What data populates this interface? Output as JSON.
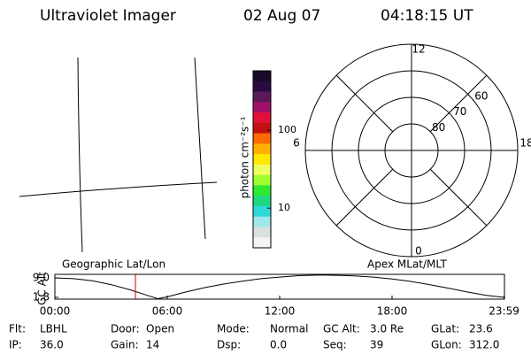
{
  "header": {
    "title": "Ultraviolet Imager",
    "date": "02 Aug 07",
    "time": "04:18:15 UT"
  },
  "geo_panel": {
    "label": "Geographic Lat/Lon"
  },
  "colorbar": {
    "label": "photon cm⁻²s⁻¹",
    "log": true,
    "clim": [
      3.1,
      577
    ],
    "ticks": [
      10,
      100
    ],
    "colors": [
      "#1a0a2a",
      "#2a0a40",
      "#5a1a5a",
      "#a0106a",
      "#e0103a",
      "#c01010",
      "#ff6a00",
      "#ffb000",
      "#ffe800",
      "#f0ff60",
      "#a0ff30",
      "#30e830",
      "#20d880",
      "#30d8d8",
      "#a0e8ec",
      "#d8e0e0",
      "#f4f4f4"
    ]
  },
  "polar": {
    "label": "Apex MLat/MLT",
    "rlim": [
      90,
      50
    ],
    "lat_rings": [
      80,
      70,
      60
    ],
    "mlt_labels": [
      12,
      18,
      6,
      0
    ]
  },
  "alt_plot": {
    "type": "line",
    "ylabel": "GC Alt",
    "xlim": [
      0,
      24
    ],
    "ylim": [
      1.15,
      10.3
    ],
    "yticks": [
      {
        "value": 9,
        "label": "9.0"
      },
      {
        "value": 1.8,
        "label": "1.8"
      }
    ],
    "xticks": [
      {
        "value": 0,
        "label": "00:00"
      },
      {
        "value": 6,
        "label": "06:00"
      },
      {
        "value": 12,
        "label": "12:00"
      },
      {
        "value": 18,
        "label": "18:00"
      },
      {
        "value": 23.98,
        "label": "23:59"
      }
    ],
    "x": [
      0,
      1,
      2,
      3,
      4,
      5,
      5.5,
      6,
      7,
      8,
      9,
      10,
      11,
      12,
      13,
      14,
      14.5,
      15,
      16,
      17,
      18,
      19,
      20,
      21,
      22,
      23,
      23.98
    ],
    "values": [
      9.0,
      8.7,
      7.9,
      6.5,
      4.6,
      2.4,
      1.3,
      2.0,
      3.8,
      5.4,
      6.7,
      7.8,
      8.7,
      9.3,
      9.8,
      10.0,
      10.0,
      9.95,
      9.7,
      9.3,
      8.6,
      7.7,
      6.5,
      5.2,
      3.8,
      2.6,
      1.8
    ],
    "marker": 4.3
  },
  "status": [
    [
      {
        "label": "Flt:",
        "value": "LBHL"
      },
      {
        "label": "Door:",
        "value": "Open"
      },
      {
        "label": "Mode:",
        "value": "Normal"
      },
      {
        "label": "GC Alt:",
        "value": "3.0 Re"
      },
      {
        "label": "GLat:",
        "value": "23.6"
      }
    ],
    [
      {
        "label": "IP:",
        "value": "36.0"
      },
      {
        "label": "Gain:",
        "value": "14"
      },
      {
        "label": "Dsp:",
        "value": "0.0"
      },
      {
        "label": "Seq:",
        "value": "39"
      },
      {
        "label": "GLon:",
        "value": "312.0"
      }
    ]
  ]
}
